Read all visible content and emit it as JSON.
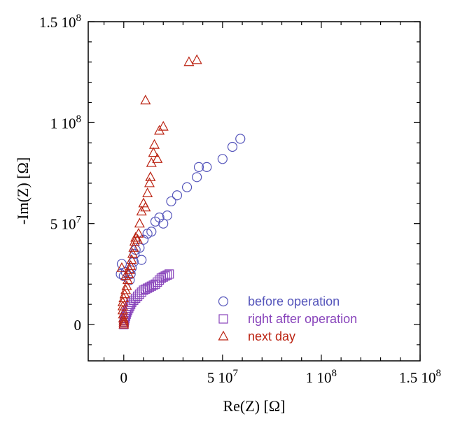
{
  "chart_data": {
    "type": "scatter",
    "title": "",
    "xlabel": "Re(Z) [Ω]",
    "ylabel": "-Im(Z) [Ω]",
    "xlim": [
      -18000000,
      150000000
    ],
    "ylim": [
      -18000000,
      150000000
    ],
    "grid": false,
    "legend_position": "bottom-right",
    "x_ticks": [
      {
        "value": 0,
        "label": "0"
      },
      {
        "value": 50000000,
        "label": "5 10",
        "exp": "7"
      },
      {
        "value": 100000000,
        "label": "1 10",
        "exp": "8"
      },
      {
        "value": 150000000,
        "label": "1.5 10",
        "exp": "8"
      }
    ],
    "y_ticks": [
      {
        "value": 0,
        "label": "0"
      },
      {
        "value": 50000000,
        "label": "5 10",
        "exp": "7"
      },
      {
        "value": 100000000,
        "label": "1 10",
        "exp": "8"
      },
      {
        "value": 150000000,
        "label": "1.5 10",
        "exp": "8"
      }
    ],
    "series": [
      {
        "name": "before operation",
        "marker": "circle",
        "color": "#5555bb",
        "points": [
          [
            -1000000,
            30000000
          ],
          [
            -1500000,
            25000000
          ],
          [
            0,
            24000000
          ],
          [
            1000000,
            26000000
          ],
          [
            3000000,
            22000000
          ],
          [
            3500000,
            25000000
          ],
          [
            4000000,
            28000000
          ],
          [
            5000000,
            31000000
          ],
          [
            5500000,
            35000000
          ],
          [
            6000000,
            37000000
          ],
          [
            8000000,
            38000000
          ],
          [
            9000000,
            32000000
          ],
          [
            10000000,
            42000000
          ],
          [
            12000000,
            45000000
          ],
          [
            14000000,
            46000000
          ],
          [
            16000000,
            51000000
          ],
          [
            18000000,
            53000000
          ],
          [
            20000000,
            50000000
          ],
          [
            22000000,
            54000000
          ],
          [
            24000000,
            61000000
          ],
          [
            27000000,
            64000000
          ],
          [
            32000000,
            68000000
          ],
          [
            37000000,
            73000000
          ],
          [
            38000000,
            78000000
          ],
          [
            42000000,
            78000000
          ],
          [
            50000000,
            82000000
          ],
          [
            55000000,
            88000000
          ],
          [
            59000000,
            92000000
          ]
        ]
      },
      {
        "name": "right after operation",
        "marker": "square",
        "color": "#8844bb",
        "points": [
          [
            0,
            0
          ],
          [
            200000,
            1000000
          ],
          [
            400000,
            2000000
          ],
          [
            600000,
            3000000
          ],
          [
            900000,
            4000000
          ],
          [
            1200000,
            5000000
          ],
          [
            1500000,
            6000000
          ],
          [
            2000000,
            7000000
          ],
          [
            2500000,
            8000000
          ],
          [
            3000000,
            9000000
          ],
          [
            3500000,
            10000000
          ],
          [
            4000000,
            11000000
          ],
          [
            5000000,
            12000000
          ],
          [
            6000000,
            13000000
          ],
          [
            7000000,
            14000000
          ],
          [
            8000000,
            15000000
          ],
          [
            9000000,
            16000000
          ],
          [
            10000000,
            17000000
          ],
          [
            11000000,
            17500000
          ],
          [
            12000000,
            18000000
          ],
          [
            13000000,
            18500000
          ],
          [
            14000000,
            19000000
          ],
          [
            15000000,
            19500000
          ],
          [
            16000000,
            20000000
          ],
          [
            17000000,
            21000000
          ],
          [
            18000000,
            22000000
          ],
          [
            19000000,
            23000000
          ],
          [
            20000000,
            23500000
          ],
          [
            21000000,
            24000000
          ],
          [
            22000000,
            24500000
          ],
          [
            23000000,
            25000000
          ]
        ]
      },
      {
        "name": "next day",
        "marker": "triangle",
        "color": "#bb2211",
        "points": [
          [
            0,
            0
          ],
          [
            0,
            1000000
          ],
          [
            0,
            2000000
          ],
          [
            -200000,
            3000000
          ],
          [
            -300000,
            5000000
          ],
          [
            -500000,
            7000000
          ],
          [
            -500000,
            9000000
          ],
          [
            -500000,
            11000000
          ],
          [
            0,
            13000000
          ],
          [
            500000,
            15000000
          ],
          [
            1000000,
            17000000
          ],
          [
            1500000,
            19000000
          ],
          [
            2000000,
            22000000
          ],
          [
            2500000,
            25000000
          ],
          [
            3000000,
            27000000
          ],
          [
            3500000,
            29000000
          ],
          [
            4000000,
            32000000
          ],
          [
            4500000,
            35000000
          ],
          [
            5000000,
            38000000
          ],
          [
            5500000,
            41000000
          ],
          [
            6000000,
            43000000
          ],
          [
            7000000,
            42000000
          ],
          [
            7500000,
            45000000
          ],
          [
            8000000,
            50000000
          ],
          [
            9000000,
            56000000
          ],
          [
            10000000,
            60000000
          ],
          [
            11000000,
            58000000
          ],
          [
            12000000,
            65000000
          ],
          [
            13000000,
            70000000
          ],
          [
            13500000,
            73000000
          ],
          [
            14000000,
            80000000
          ],
          [
            15000000,
            85000000
          ],
          [
            15500000,
            89000000
          ],
          [
            17000000,
            82000000
          ],
          [
            18000000,
            96000000
          ],
          [
            20000000,
            98000000
          ],
          [
            11000000,
            111000000
          ],
          [
            33000000,
            130000000
          ],
          [
            37000000,
            131000000
          ],
          [
            -1000000,
            28000000
          ],
          [
            1000000,
            24000000
          ]
        ]
      }
    ]
  }
}
